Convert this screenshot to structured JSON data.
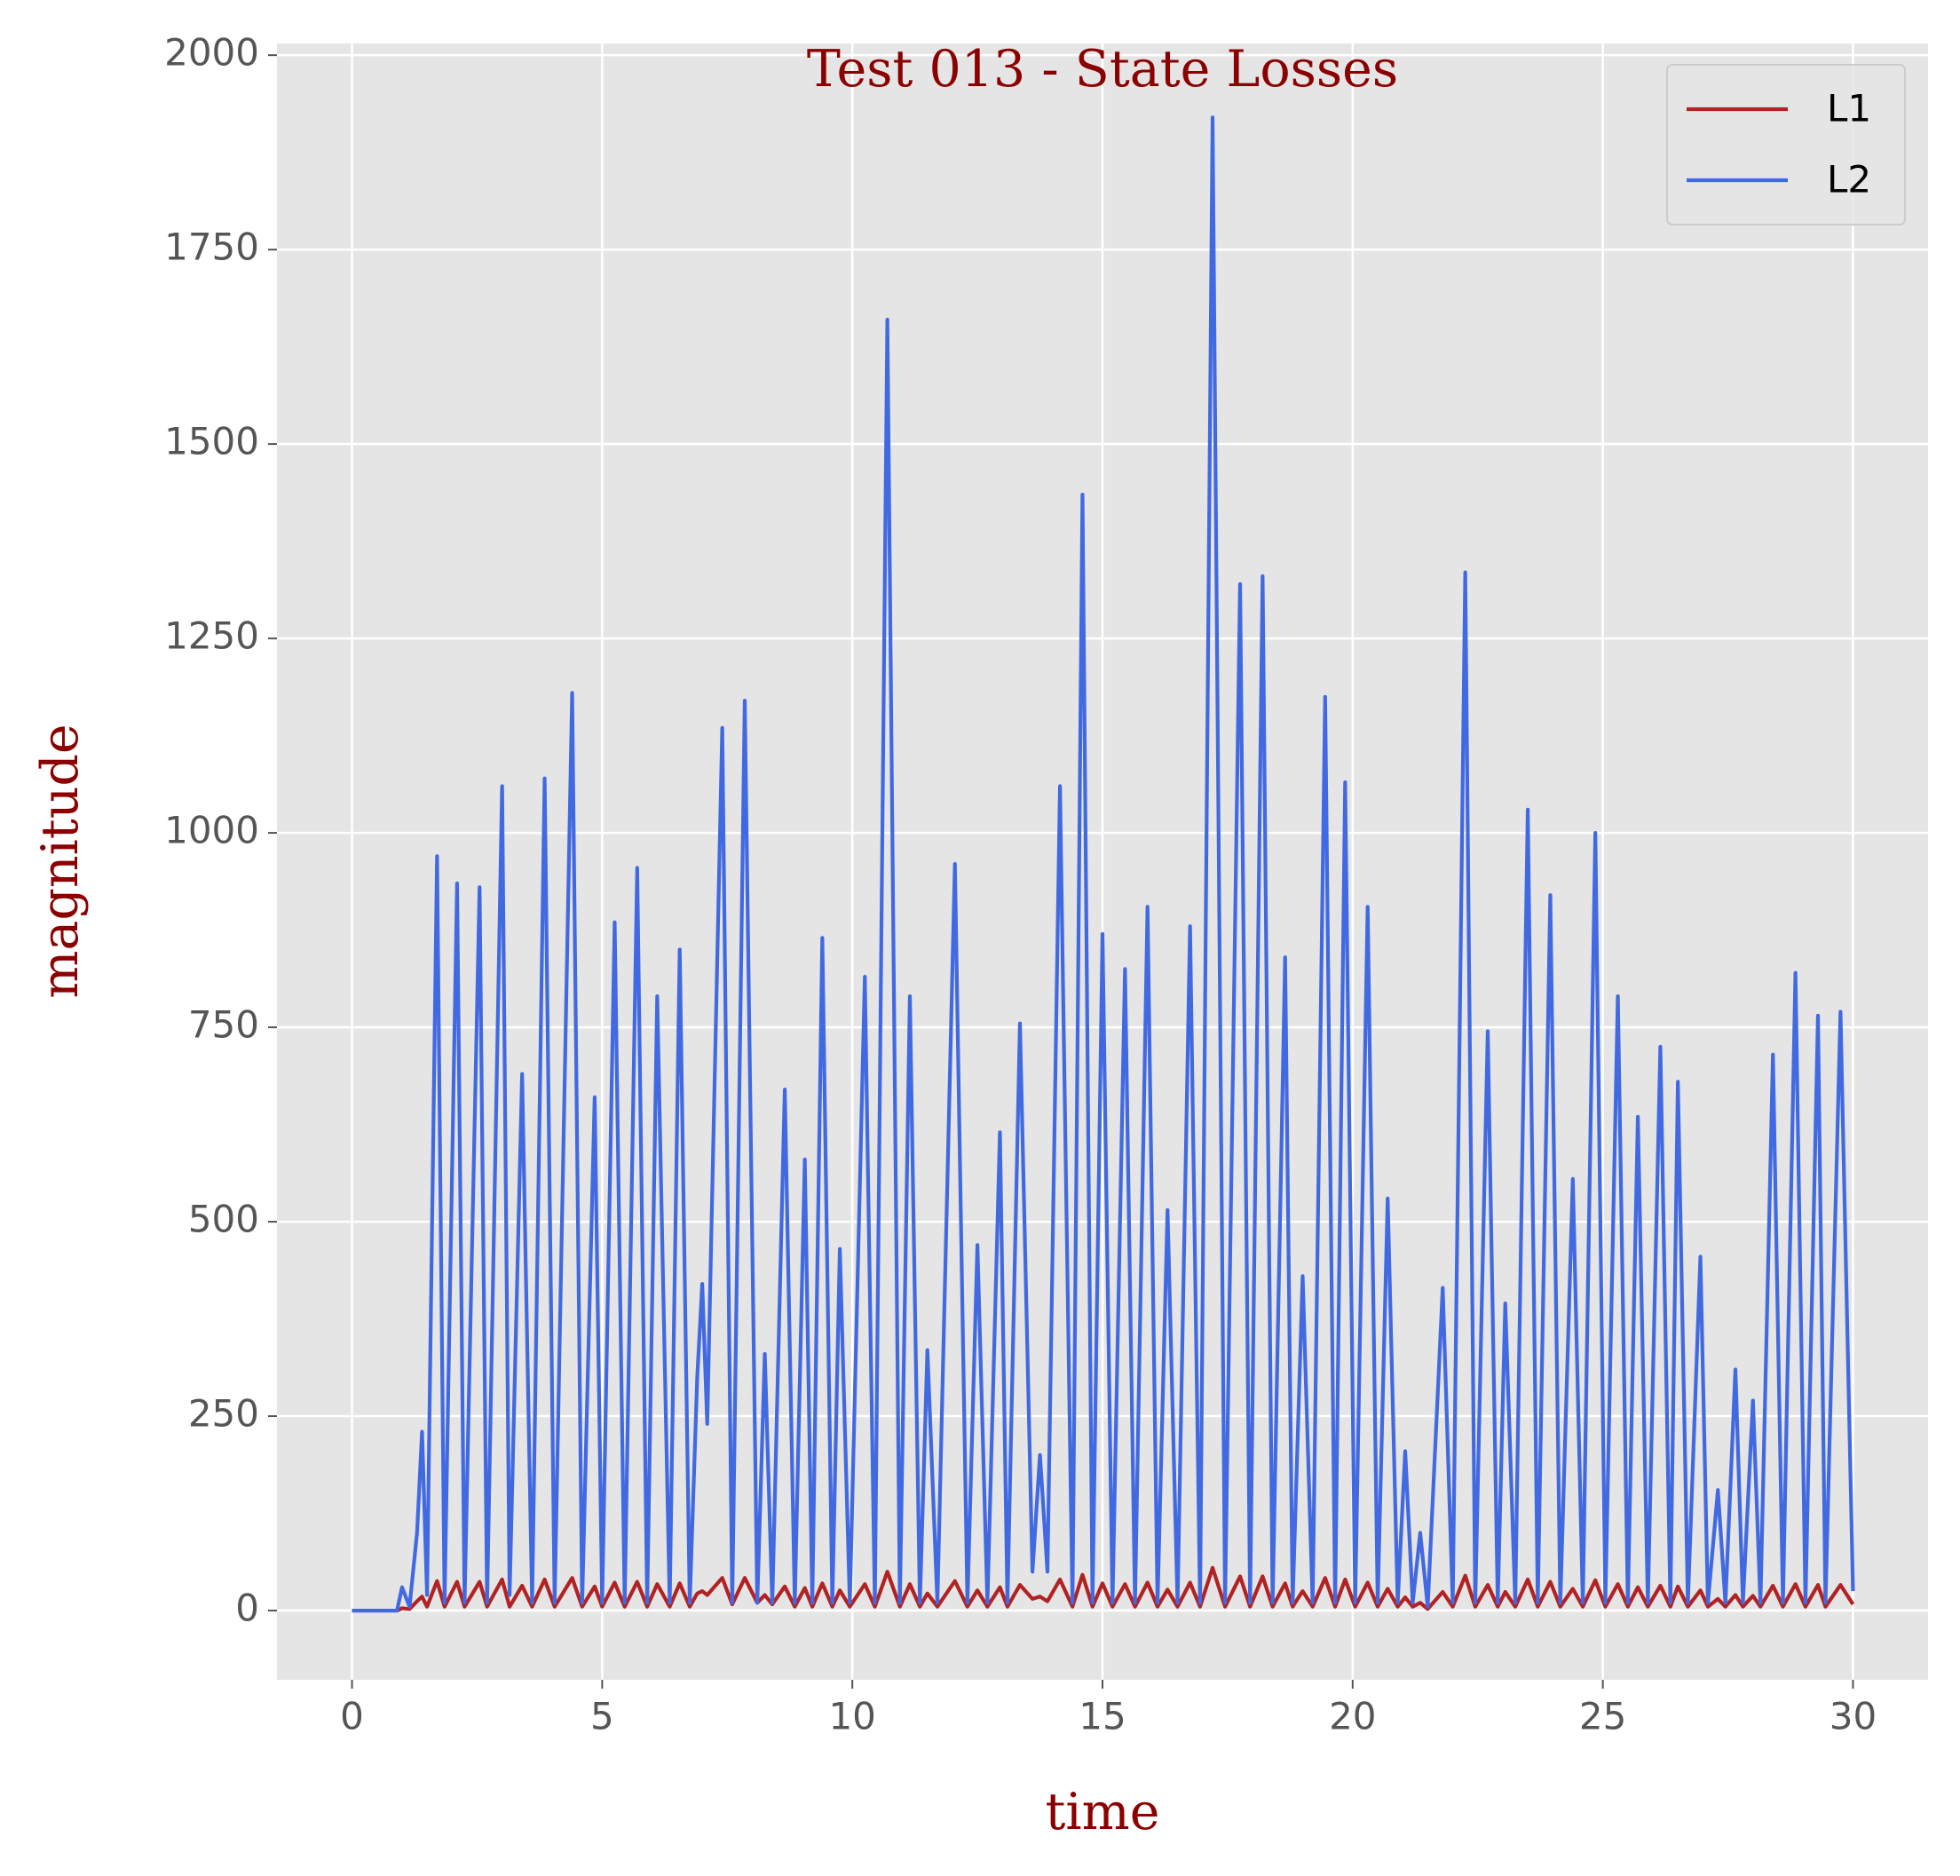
{
  "chart_data": {
    "type": "line",
    "title": "Test 013 - State Losses",
    "xlabel": "time",
    "ylabel": "magnitude",
    "x": [
      0,
      0.9,
      1.0,
      1.15,
      1.3,
      1.4,
      1.5,
      1.7,
      1.85,
      2.1,
      2.25,
      2.55,
      2.7,
      3.0,
      3.15,
      3.4,
      3.6,
      3.85,
      4.05,
      4.4,
      4.6,
      4.85,
      5.0,
      5.25,
      5.45,
      5.7,
      5.9,
      6.1,
      6.35,
      6.55,
      6.75,
      6.9,
      7.0,
      7.1,
      7.4,
      7.6,
      7.85,
      8.1,
      8.25,
      8.4,
      8.65,
      8.85,
      9.05,
      9.2,
      9.4,
      9.6,
      9.75,
      9.95,
      10.25,
      10.45,
      10.7,
      10.95,
      11.15,
      11.35,
      11.5,
      11.7,
      12.05,
      12.3,
      12.5,
      12.7,
      12.95,
      13.1,
      13.35,
      13.6,
      13.75,
      13.9,
      14.15,
      14.4,
      14.6,
      14.8,
      15.0,
      15.2,
      15.45,
      15.65,
      15.9,
      16.1,
      16.3,
      16.5,
      16.75,
      16.95,
      17.2,
      17.45,
      17.75,
      17.95,
      18.2,
      18.4,
      18.65,
      18.8,
      19.0,
      19.2,
      19.45,
      19.65,
      19.85,
      20.05,
      20.3,
      20.5,
      20.7,
      20.9,
      21.05,
      21.2,
      21.35,
      21.5,
      21.8,
      22.0,
      22.25,
      22.45,
      22.7,
      22.9,
      23.05,
      23.25,
      23.5,
      23.7,
      23.95,
      24.15,
      24.4,
      24.6,
      24.85,
      25.05,
      25.3,
      25.5,
      25.7,
      25.9,
      26.15,
      26.35,
      26.5,
      26.7,
      26.95,
      27.1,
      27.3,
      27.45,
      27.65,
      27.8,
      28.0,
      28.15,
      28.4,
      28.6,
      28.85,
      29.05,
      29.3,
      29.45,
      29.75,
      30.0
    ],
    "series": [
      {
        "name": "L1",
        "color": "#b22222",
        "values": [
          0,
          0,
          3,
          2,
          12,
          18,
          5,
          38,
          5,
          37,
          5,
          37,
          5,
          40,
          5,
          32,
          5,
          40,
          5,
          42,
          5,
          31,
          5,
          36,
          5,
          37,
          5,
          34,
          5,
          35,
          5,
          22,
          25,
          20,
          42,
          8,
          42,
          10,
          20,
          8,
          31,
          5,
          29,
          5,
          35,
          5,
          26,
          5,
          34,
          5,
          50,
          5,
          34,
          5,
          22,
          5,
          38,
          5,
          26,
          5,
          30,
          5,
          33,
          15,
          18,
          12,
          40,
          5,
          46,
          5,
          35,
          5,
          34,
          5,
          36,
          5,
          27,
          5,
          36,
          5,
          55,
          5,
          44,
          5,
          44,
          5,
          35,
          5,
          25,
          5,
          42,
          5,
          40,
          5,
          36,
          5,
          28,
          5,
          17,
          5,
          10,
          2,
          24,
          5,
          45,
          5,
          33,
          5,
          24,
          5,
          40,
          5,
          37,
          5,
          28,
          5,
          39,
          5,
          34,
          5,
          30,
          5,
          32,
          5,
          31,
          5,
          26,
          5,
          15,
          5,
          20,
          5,
          19,
          5,
          32,
          5,
          34,
          5,
          33,
          5,
          33,
          8
        ]
      },
      {
        "name": "L2",
        "color": "#4169e1",
        "values": [
          0,
          0,
          30,
          5,
          100,
          230,
          20,
          970,
          10,
          935,
          10,
          930,
          10,
          1060,
          20,
          690,
          10,
          1070,
          10,
          1180,
          10,
          660,
          10,
          885,
          10,
          955,
          10,
          790,
          10,
          850,
          10,
          300,
          420,
          240,
          1135,
          10,
          1170,
          10,
          330,
          10,
          670,
          10,
          580,
          10,
          865,
          10,
          465,
          10,
          815,
          10,
          1660,
          10,
          790,
          10,
          335,
          10,
          960,
          10,
          470,
          10,
          615,
          10,
          755,
          50,
          200,
          50,
          1060,
          10,
          1435,
          10,
          870,
          10,
          825,
          10,
          905,
          10,
          515,
          10,
          880,
          10,
          1920,
          10,
          1320,
          10,
          1330,
          10,
          840,
          10,
          430,
          10,
          1175,
          10,
          1065,
          10,
          905,
          10,
          530,
          10,
          205,
          10,
          100,
          5,
          415,
          10,
          1335,
          10,
          745,
          10,
          395,
          10,
          1030,
          10,
          920,
          10,
          555,
          10,
          1000,
          10,
          790,
          10,
          635,
          10,
          725,
          10,
          680,
          10,
          455,
          10,
          155,
          10,
          310,
          10,
          270,
          10,
          715,
          10,
          820,
          10,
          765,
          10,
          770,
          25
        ]
      }
    ],
    "xlim": [
      -1.5,
      31.5
    ],
    "ylim": [
      -89,
      2015
    ],
    "xticks": [
      0,
      5,
      10,
      15,
      20,
      25,
      30
    ],
    "yticks": [
      0,
      250,
      500,
      750,
      1000,
      1250,
      1500,
      1750,
      2000
    ],
    "grid": true,
    "legend": "upper right"
  }
}
